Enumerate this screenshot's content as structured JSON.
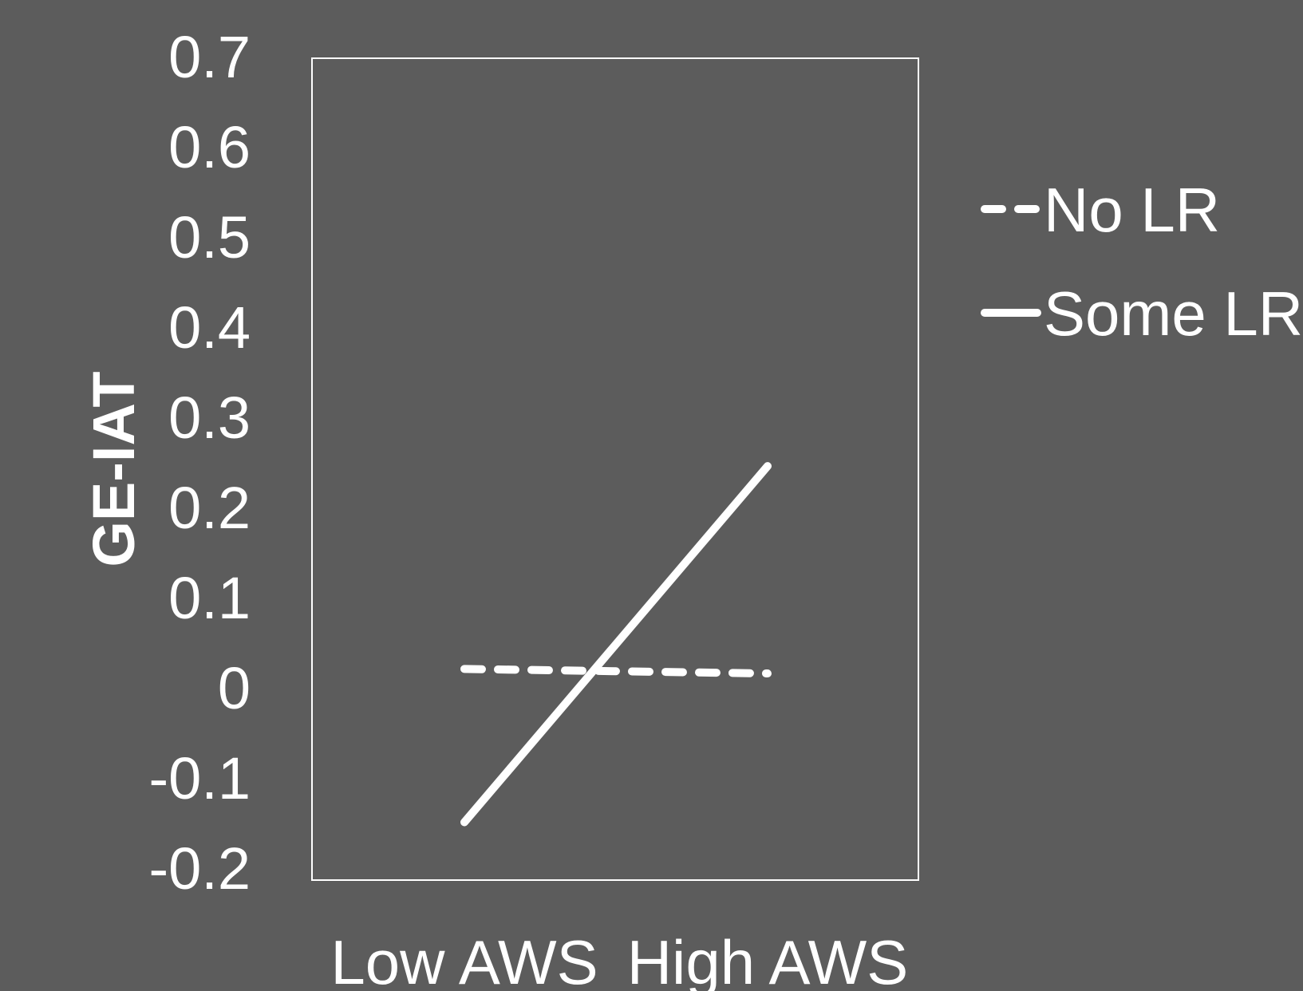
{
  "chart_data": {
    "type": "line",
    "title": "",
    "xlabel": "",
    "ylabel": "GE-IAT",
    "categories": [
      "Low AWS",
      "High AWS"
    ],
    "ylim": [
      -0.2,
      0.7
    ],
    "yticks": [
      "0.7",
      "0.6",
      "0.5",
      "0.4",
      "0.3",
      "0.2",
      "0.1",
      "0",
      "-0.1",
      "-0.2"
    ],
    "ytick_values": [
      0.7,
      0.6,
      0.5,
      0.4,
      0.3,
      0.2,
      0.1,
      0,
      -0.1,
      -0.2
    ],
    "grid": false,
    "legend_position": "right",
    "series": [
      {
        "name": "No LR",
        "values": [
          0.02,
          0.015
        ],
        "style": "dashed",
        "color": "#ffffff"
      },
      {
        "name": "Some LR",
        "values": [
          -0.15,
          0.245
        ],
        "style": "solid",
        "color": "#ffffff"
      }
    ],
    "colors": {
      "background": "#5c5c5c",
      "foreground": "#ffffff"
    }
  }
}
